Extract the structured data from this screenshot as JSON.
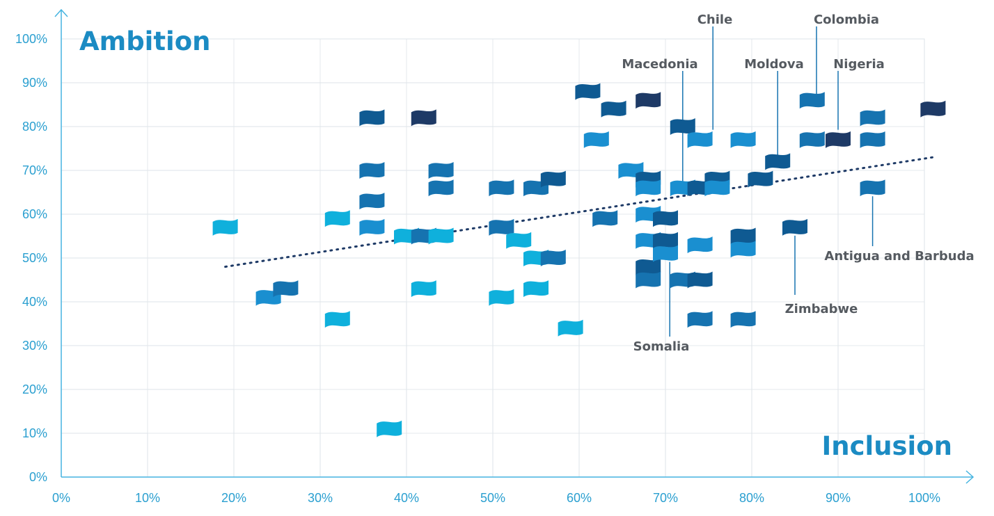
{
  "chart_data": {
    "type": "scatter",
    "xlabel": "Inclusion",
    "ylabel": "Ambition",
    "xlim": [
      0,
      105
    ],
    "ylim": [
      0,
      105
    ],
    "x_ticks": [
      "0%",
      "10%",
      "20%",
      "30%",
      "40%",
      "50%",
      "60%",
      "70%",
      "80%",
      "90%",
      "100%"
    ],
    "y_ticks": [
      "0%",
      "10%",
      "20%",
      "30%",
      "40%",
      "50%",
      "60%",
      "70%",
      "80%",
      "90%",
      "100%"
    ],
    "grid": true,
    "marker": "flag",
    "trendline": {
      "style": "dotted",
      "color": "#1e3a66",
      "x": [
        19,
        101
      ],
      "y": [
        48,
        73
      ]
    },
    "colors": {
      "cyan": "#0fb0dc",
      "sky": "#1a8fd0",
      "mid": "#1673b0",
      "deep": "#0f5a92",
      "navy": "#1e3a66",
      "axis": "#45b4e0",
      "grid": "#e6eaee"
    },
    "points": [
      {
        "x": 19,
        "y": 57,
        "tone": "cyan"
      },
      {
        "x": 24,
        "y": 41,
        "tone": "sky"
      },
      {
        "x": 26,
        "y": 43,
        "tone": "mid"
      },
      {
        "x": 32,
        "y": 59,
        "tone": "cyan"
      },
      {
        "x": 32,
        "y": 36,
        "tone": "cyan"
      },
      {
        "x": 36,
        "y": 82,
        "tone": "deep"
      },
      {
        "x": 36,
        "y": 70,
        "tone": "mid"
      },
      {
        "x": 36,
        "y": 63,
        "tone": "mid"
      },
      {
        "x": 36,
        "y": 57,
        "tone": "sky"
      },
      {
        "x": 38,
        "y": 11,
        "tone": "cyan"
      },
      {
        "x": 40,
        "y": 55,
        "tone": "cyan"
      },
      {
        "x": 42,
        "y": 55,
        "tone": "mid"
      },
      {
        "x": 42,
        "y": 82,
        "tone": "navy"
      },
      {
        "x": 42,
        "y": 43,
        "tone": "cyan"
      },
      {
        "x": 44,
        "y": 70,
        "tone": "mid"
      },
      {
        "x": 44,
        "y": 66,
        "tone": "mid"
      },
      {
        "x": 44,
        "y": 55,
        "tone": "cyan"
      },
      {
        "x": 51,
        "y": 66,
        "tone": "mid"
      },
      {
        "x": 51,
        "y": 57,
        "tone": "mid"
      },
      {
        "x": 51,
        "y": 41,
        "tone": "cyan"
      },
      {
        "x": 53,
        "y": 54,
        "tone": "cyan"
      },
      {
        "x": 55,
        "y": 66,
        "tone": "mid"
      },
      {
        "x": 55,
        "y": 50,
        "tone": "cyan"
      },
      {
        "x": 55,
        "y": 43,
        "tone": "cyan"
      },
      {
        "x": 57,
        "y": 68,
        "tone": "deep"
      },
      {
        "x": 57,
        "y": 50,
        "tone": "mid"
      },
      {
        "x": 59,
        "y": 34,
        "tone": "cyan"
      },
      {
        "x": 61,
        "y": 88,
        "tone": "deep"
      },
      {
        "x": 62,
        "y": 77,
        "tone": "sky"
      },
      {
        "x": 63,
        "y": 59,
        "tone": "mid"
      },
      {
        "x": 64,
        "y": 84,
        "tone": "deep"
      },
      {
        "x": 66,
        "y": 70,
        "tone": "sky"
      },
      {
        "x": 68,
        "y": 86,
        "tone": "navy"
      },
      {
        "x": 68,
        "y": 68,
        "tone": "deep"
      },
      {
        "x": 68,
        "y": 66,
        "tone": "sky"
      },
      {
        "x": 68,
        "y": 60,
        "tone": "sky"
      },
      {
        "x": 68,
        "y": 54,
        "tone": "sky"
      },
      {
        "x": 68,
        "y": 48,
        "tone": "deep"
      },
      {
        "x": 68,
        "y": 45,
        "tone": "mid"
      },
      {
        "x": 70,
        "y": 59,
        "tone": "deep"
      },
      {
        "x": 70,
        "y": 54,
        "tone": "deep"
      },
      {
        "x": 70,
        "y": 51,
        "tone": "sky"
      },
      {
        "x": 72,
        "y": 80,
        "tone": "deep"
      },
      {
        "x": 72,
        "y": 66,
        "tone": "sky"
      },
      {
        "x": 72,
        "y": 45,
        "tone": "mid"
      },
      {
        "x": 74,
        "y": 77,
        "tone": "sky"
      },
      {
        "x": 74,
        "y": 66,
        "tone": "deep"
      },
      {
        "x": 74,
        "y": 53,
        "tone": "sky"
      },
      {
        "x": 74,
        "y": 45,
        "tone": "deep"
      },
      {
        "x": 74,
        "y": 36,
        "tone": "mid"
      },
      {
        "x": 76,
        "y": 68,
        "tone": "deep"
      },
      {
        "x": 76,
        "y": 66,
        "tone": "sky"
      },
      {
        "x": 79,
        "y": 77,
        "tone": "sky"
      },
      {
        "x": 79,
        "y": 55,
        "tone": "deep"
      },
      {
        "x": 79,
        "y": 52,
        "tone": "sky"
      },
      {
        "x": 79,
        "y": 36,
        "tone": "mid"
      },
      {
        "x": 81,
        "y": 68,
        "tone": "deep"
      },
      {
        "x": 83,
        "y": 72,
        "tone": "deep"
      },
      {
        "x": 85,
        "y": 57,
        "tone": "deep"
      },
      {
        "x": 87,
        "y": 86,
        "tone": "mid"
      },
      {
        "x": 87,
        "y": 77,
        "tone": "mid"
      },
      {
        "x": 90,
        "y": 77,
        "tone": "navy"
      },
      {
        "x": 94,
        "y": 82,
        "tone": "mid"
      },
      {
        "x": 94,
        "y": 77,
        "tone": "mid"
      },
      {
        "x": 94,
        "y": 66,
        "tone": "mid"
      },
      {
        "x": 101,
        "y": 84,
        "tone": "navy"
      }
    ],
    "annotations": [
      {
        "text": "Chile",
        "x": 75.5,
        "y": 78
      },
      {
        "text": "Colombia",
        "x": 87.5,
        "y": 86
      },
      {
        "text": "Macedonia",
        "x": 72,
        "y": 66
      },
      {
        "text": "Moldova",
        "x": 83,
        "y": 72
      },
      {
        "text": "Nigeria",
        "x": 90,
        "y": 78
      },
      {
        "text": "Antigua and Barbuda",
        "x": 94,
        "y": 66
      },
      {
        "text": "Zimbabwe",
        "x": 85,
        "y": 57
      },
      {
        "text": "Somalia",
        "x": 70.5,
        "y": 51
      }
    ]
  }
}
